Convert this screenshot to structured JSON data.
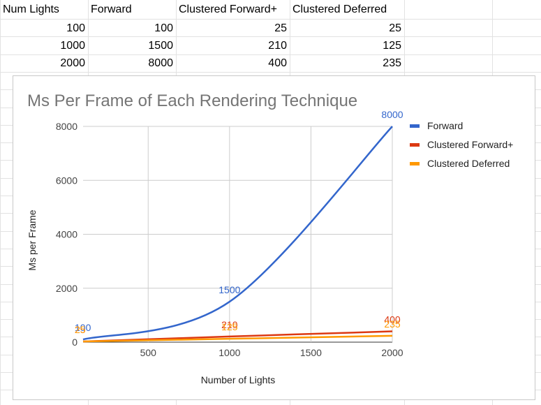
{
  "table": {
    "headers": [
      "Num Lights",
      "Forward",
      "Clustered Forward+",
      "Clustered Deferred"
    ],
    "rows": [
      [
        "100",
        "100",
        "25",
        "25"
      ],
      [
        "1000",
        "1500",
        "210",
        "125"
      ],
      [
        "2000",
        "8000",
        "400",
        "235"
      ]
    ]
  },
  "chart_data": {
    "type": "line",
    "title": "Ms Per Frame of Each Rendering Technique",
    "xlabel": "Number of Lights",
    "ylabel": "Ms per Frame",
    "x": [
      100,
      1000,
      2000
    ],
    "xlim": [
      100,
      2000
    ],
    "ylim": [
      0,
      8000
    ],
    "x_ticks": [
      500,
      1000,
      1500,
      2000
    ],
    "y_ticks": [
      0,
      2000,
      4000,
      6000,
      8000
    ],
    "x_tick_labels": [
      "500",
      "1000",
      "1500",
      "2000"
    ],
    "y_tick_labels": [
      "0",
      "2000",
      "4000",
      "6000",
      "8000"
    ],
    "grid": true,
    "legend_position": "right",
    "series": [
      {
        "name": "Forward",
        "values": [
          100,
          1500,
          8000
        ],
        "color": "#3366cc",
        "labels": [
          "100",
          "1500",
          "8000"
        ]
      },
      {
        "name": "Clustered Forward+",
        "values": [
          25,
          210,
          400
        ],
        "color": "#dc3912",
        "labels": [
          "25",
          "210",
          "400"
        ]
      },
      {
        "name": "Clustered Deferred",
        "values": [
          25,
          125,
          235
        ],
        "color": "#ff9900",
        "labels": [
          "25",
          "125",
          "235"
        ]
      }
    ]
  }
}
